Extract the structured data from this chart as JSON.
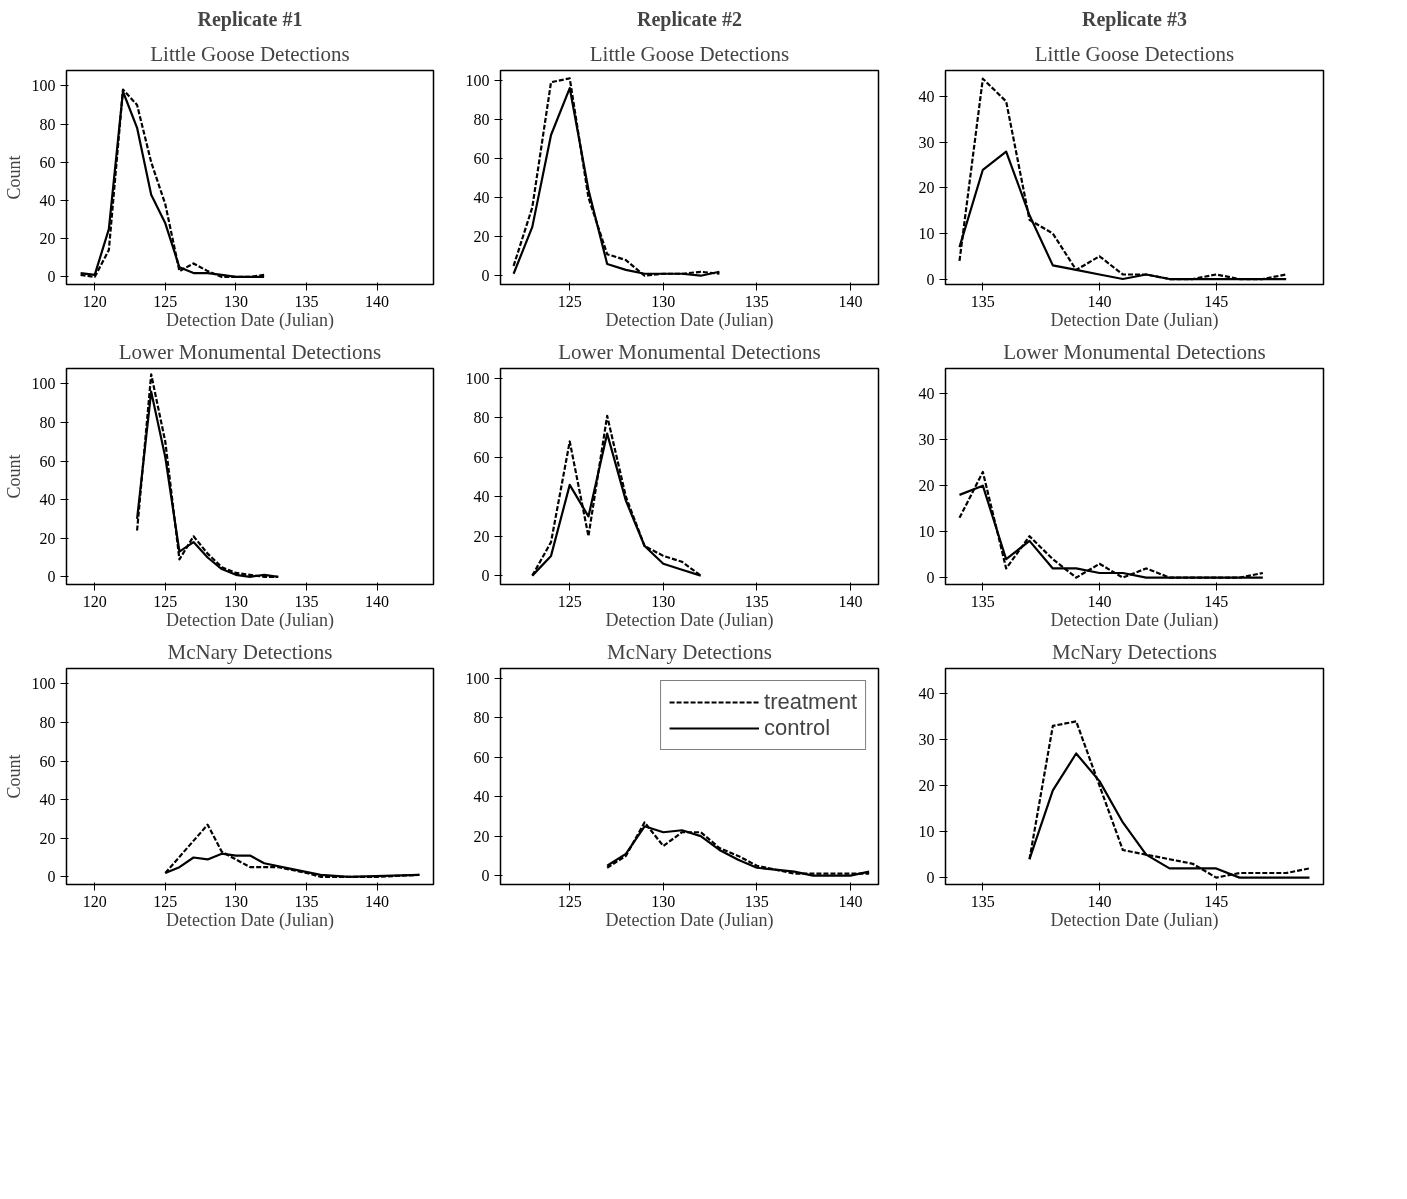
{
  "chart_data": [
    {
      "type": "line",
      "subtitle": "Replicate #1",
      "title": "Little Goose Detections",
      "xlabel": "Detection Date (Julian)",
      "ylabel": "Count",
      "xlim": [
        118,
        144
      ],
      "ylim": [
        -4,
        108
      ],
      "xticks": [
        120,
        125,
        130,
        135,
        140
      ],
      "yticks": [
        0,
        20,
        40,
        60,
        80,
        100
      ],
      "series": [
        {
          "color": "#000000",
          "line_style": "dashed",
          "x": [
            119,
            120,
            121,
            122,
            123,
            124,
            125,
            126,
            127,
            128,
            129,
            130,
            131,
            132
          ],
          "values": [
            1,
            0,
            14,
            98,
            90,
            60,
            38,
            3,
            7,
            3,
            0,
            0,
            0,
            1
          ]
        },
        {
          "color": "#000000",
          "line_style": "solid",
          "x": [
            119,
            120,
            121,
            122,
            123,
            124,
            125,
            126,
            127,
            128,
            129,
            130,
            131,
            132
          ],
          "values": [
            2,
            1,
            25,
            97,
            78,
            43,
            28,
            5,
            2,
            2,
            1,
            0,
            0,
            0
          ]
        }
      ]
    },
    {
      "type": "line",
      "subtitle": "Replicate #2",
      "title": "Little Goose Detections",
      "xlabel": "Detection Date (Julian)",
      "xlim": [
        121.3,
        141.5
      ],
      "ylim": [
        -4.5,
        105
      ],
      "xticks": [
        125,
        130,
        135,
        140
      ],
      "yticks": [
        0,
        20,
        40,
        60,
        80,
        100
      ],
      "series": [
        {
          "color": "#000000",
          "line_style": "dashed",
          "x": [
            122,
            123,
            124,
            125,
            126,
            127,
            128,
            129,
            130,
            131,
            132,
            133
          ],
          "values": [
            5,
            35,
            99,
            101,
            40,
            11,
            8,
            0,
            1,
            1,
            2,
            1
          ]
        },
        {
          "color": "#000000",
          "line_style": "solid",
          "x": [
            122,
            123,
            124,
            125,
            126,
            127,
            128,
            129,
            130,
            131,
            132,
            133
          ],
          "values": [
            1,
            25,
            72,
            96,
            44,
            6,
            3,
            1,
            1,
            1,
            0,
            2
          ]
        }
      ]
    },
    {
      "type": "line",
      "subtitle": "Replicate #3",
      "title": "Little Goose Detections",
      "xlabel": "Detection Date (Julian)",
      "xlim": [
        133.4,
        149.6
      ],
      "ylim": [
        -1.2,
        45.8
      ],
      "xticks": [
        135,
        140,
        145
      ],
      "yticks": [
        0,
        10,
        20,
        30,
        40
      ],
      "series": [
        {
          "color": "#000000",
          "line_style": "dashed",
          "x": [
            134,
            135,
            136,
            137,
            138,
            139,
            140,
            141,
            142,
            143,
            144,
            145,
            146,
            147,
            148
          ],
          "values": [
            4,
            44,
            39,
            13,
            10,
            2,
            5,
            1,
            1,
            0,
            0,
            1,
            0,
            0,
            1
          ]
        },
        {
          "color": "#000000",
          "line_style": "solid",
          "x": [
            134,
            135,
            136,
            137,
            138,
            139,
            140,
            141,
            142,
            143,
            144,
            145,
            146,
            147,
            148
          ],
          "values": [
            7,
            24,
            28,
            14,
            3,
            2,
            1,
            0,
            1,
            0,
            0,
            0,
            0,
            0,
            0
          ]
        }
      ]
    },
    {
      "type": "line",
      "title": "Lower Monumental Detections",
      "xlabel": "Detection Date (Julian)",
      "ylabel": "Count",
      "xlim": [
        118,
        144
      ],
      "ylim": [
        -4,
        108
      ],
      "xticks": [
        120,
        125,
        130,
        135,
        140
      ],
      "yticks": [
        0,
        20,
        40,
        60,
        80,
        100
      ],
      "series": [
        {
          "color": "#000000",
          "line_style": "dashed",
          "x": [
            123,
            124,
            125,
            126,
            127,
            128,
            129,
            130,
            131,
            132,
            133
          ],
          "values": [
            24,
            105,
            70,
            9,
            21,
            12,
            5,
            2,
            1,
            0,
            0
          ]
        },
        {
          "color": "#000000",
          "line_style": "solid",
          "x": [
            123,
            124,
            125,
            126,
            127,
            128,
            129,
            130,
            131,
            132,
            133
          ],
          "values": [
            30,
            96,
            62,
            13,
            18,
            10,
            4,
            1,
            0,
            1,
            0
          ]
        }
      ]
    },
    {
      "type": "line",
      "title": "Lower Monumental Detections",
      "xlabel": "Detection Date (Julian)",
      "xlim": [
        121.3,
        141.5
      ],
      "ylim": [
        -4.5,
        105
      ],
      "xticks": [
        125,
        130,
        135,
        140
      ],
      "yticks": [
        0,
        20,
        40,
        60,
        80,
        100
      ],
      "series": [
        {
          "color": "#000000",
          "line_style": "dashed",
          "x": [
            123,
            124,
            125,
            126,
            127,
            128,
            129,
            130,
            131,
            132
          ],
          "values": [
            0,
            17,
            68,
            20,
            81,
            40,
            15,
            10,
            7,
            0
          ]
        },
        {
          "color": "#000000",
          "line_style": "solid",
          "x": [
            123,
            124,
            125,
            126,
            127,
            128,
            129,
            130,
            131,
            132
          ],
          "values": [
            0,
            10,
            46,
            30,
            72,
            38,
            15,
            6,
            3,
            0
          ]
        }
      ]
    },
    {
      "type": "line",
      "title": "Lower Monumental Detections",
      "xlabel": "Detection Date (Julian)",
      "xlim": [
        133.4,
        149.6
      ],
      "ylim": [
        -1.5,
        45.5
      ],
      "xticks": [
        135,
        140,
        145
      ],
      "yticks": [
        0,
        10,
        20,
        30,
        40
      ],
      "series": [
        {
          "color": "#000000",
          "line_style": "dashed",
          "x": [
            134,
            135,
            136,
            137,
            138,
            139,
            140,
            141,
            142,
            143,
            144,
            145,
            146,
            147
          ],
          "values": [
            13,
            23,
            2,
            9,
            4,
            0,
            3,
            0,
            2,
            0,
            0,
            0,
            0,
            1
          ]
        },
        {
          "color": "#000000",
          "line_style": "solid",
          "x": [
            134,
            135,
            136,
            137,
            138,
            139,
            140,
            141,
            142,
            143,
            144,
            145,
            146,
            147
          ],
          "values": [
            18,
            20,
            4,
            8,
            2,
            2,
            1,
            1,
            0,
            0,
            0,
            0,
            0,
            0
          ]
        }
      ]
    },
    {
      "type": "line",
      "title": "McNary Detections",
      "xlabel": "Detection Date (Julian)",
      "ylabel": "Count",
      "xlim": [
        118,
        144
      ],
      "ylim": [
        -4,
        108
      ],
      "xticks": [
        120,
        125,
        130,
        135,
        140
      ],
      "yticks": [
        0,
        20,
        40,
        60,
        80,
        100
      ],
      "series": [
        {
          "color": "#000000",
          "line_style": "dashed",
          "x": [
            125,
            128,
            129,
            131,
            133,
            135,
            136,
            137,
            140,
            143
          ],
          "values": [
            2,
            27,
            13,
            5,
            5,
            2,
            0,
            0,
            0,
            1
          ]
        },
        {
          "color": "#000000",
          "line_style": "solid",
          "x": [
            125,
            126,
            127,
            128,
            129,
            130,
            131,
            132,
            134,
            136,
            138,
            143
          ],
          "values": [
            2,
            5,
            10,
            9,
            12,
            11,
            11,
            7,
            4,
            1,
            0,
            1
          ]
        }
      ]
    },
    {
      "type": "line",
      "title": "McNary Detections",
      "xlabel": "Detection Date (Julian)",
      "xlim": [
        121.3,
        141.5
      ],
      "ylim": [
        -4.5,
        105
      ],
      "xticks": [
        125,
        130,
        135,
        140
      ],
      "yticks": [
        0,
        20,
        40,
        60,
        80,
        100
      ],
      "legend": "top right",
      "series": [
        {
          "name": "treatment",
          "color": "#000000",
          "line_style": "dashed",
          "x": [
            127,
            128,
            129,
            130,
            131,
            132,
            133,
            134,
            135,
            136,
            137,
            138,
            139,
            140,
            141
          ],
          "values": [
            4,
            10,
            27,
            15,
            22,
            22,
            14,
            10,
            5,
            3,
            1,
            1,
            1,
            1,
            1
          ]
        },
        {
          "name": "control",
          "color": "#000000",
          "line_style": "solid",
          "x": [
            127,
            128,
            129,
            130,
            131,
            132,
            133,
            134,
            135,
            136,
            137,
            138,
            139,
            140,
            141
          ],
          "values": [
            5,
            11,
            25,
            22,
            23,
            20,
            13,
            8,
            4,
            3,
            2,
            0,
            0,
            0,
            2
          ]
        }
      ]
    },
    {
      "type": "line",
      "title": "McNary Detections",
      "xlabel": "Detection Date (Julian)",
      "xlim": [
        133.4,
        149.6
      ],
      "ylim": [
        -1.5,
        45.5
      ],
      "xticks": [
        135,
        140,
        145
      ],
      "yticks": [
        0,
        10,
        20,
        30,
        40
      ],
      "series": [
        {
          "color": "#000000",
          "line_style": "dashed",
          "x": [
            137,
            138,
            139,
            140,
            141,
            142,
            143,
            144,
            145,
            146,
            147,
            148,
            149
          ],
          "values": [
            4,
            33,
            34,
            20,
            6,
            5,
            4,
            3,
            0,
            1,
            1,
            1,
            2
          ]
        },
        {
          "color": "#000000",
          "line_style": "solid",
          "x": [
            137,
            138,
            139,
            140,
            141,
            142,
            143,
            144,
            145,
            146,
            147,
            148,
            149
          ],
          "values": [
            4,
            19,
            27,
            21,
            12,
            5,
            2,
            2,
            2,
            0,
            0,
            0,
            0
          ]
        }
      ]
    }
  ]
}
